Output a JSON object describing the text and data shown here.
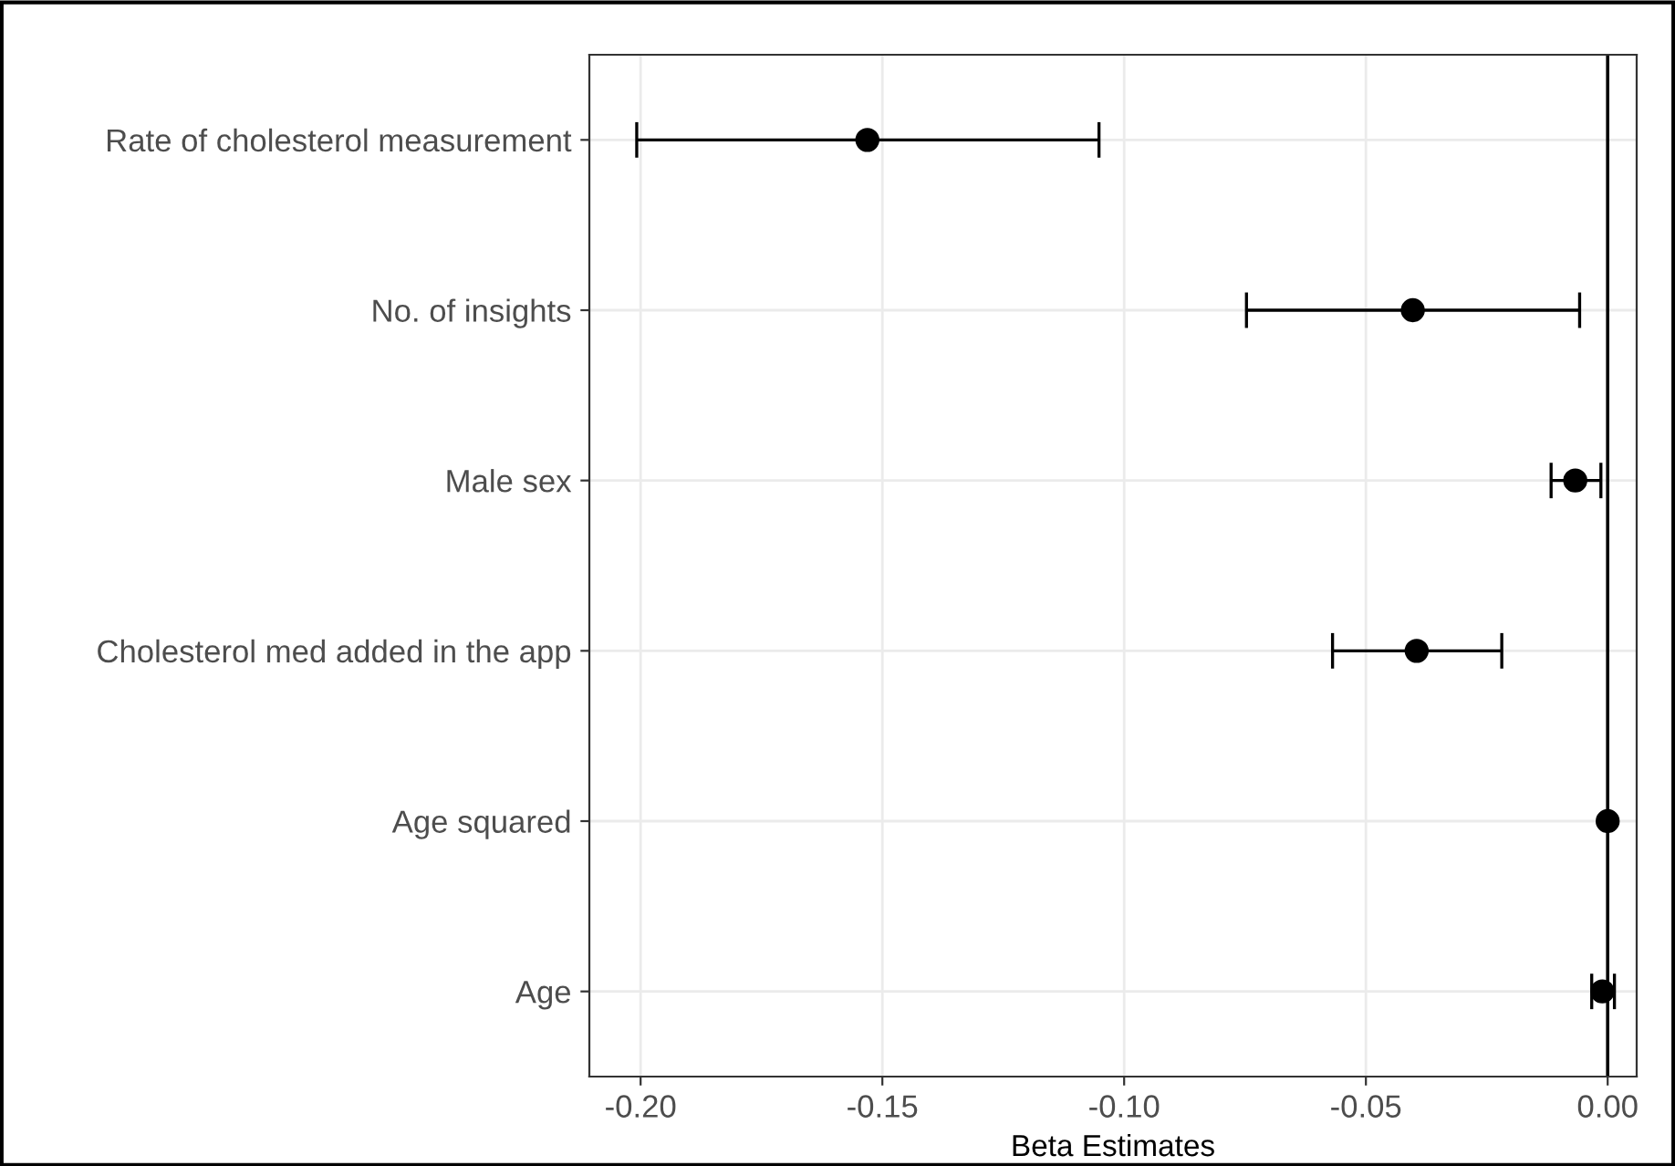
{
  "chart_data": {
    "type": "scatter",
    "orientation": "horizontal",
    "xlabel": "Beta Estimates",
    "categories": [
      "Rate of cholesterol measurement",
      "No. of insights",
      "Male sex",
      "Cholesterol med added in the app",
      "Age squared",
      "Age"
    ],
    "values": [
      -0.1531,
      -0.0403,
      -0.0067,
      -0.0395,
      0.0,
      -0.0011
    ],
    "errors": [
      [
        -0.2008,
        -0.1052
      ],
      [
        -0.0747,
        -0.0058
      ],
      [
        -0.0117,
        -0.0014
      ],
      [
        -0.0569,
        -0.0219
      ],
      null,
      [
        -0.0033,
        0.0014
      ]
    ],
    "color": "#000000",
    "marker": "circle",
    "xlim": [
      -0.2106,
      0.006
    ],
    "xticks": [
      {
        "value": -0.2,
        "label": "-0.20"
      },
      {
        "value": -0.15,
        "label": "-0.15"
      },
      {
        "value": -0.1,
        "label": "-0.10"
      },
      {
        "value": -0.05,
        "label": "-0.05"
      },
      {
        "value": 0,
        "label": "0.00"
      }
    ],
    "ref_lines": [
      {
        "axis": "x",
        "value": 0,
        "color": "#000000"
      }
    ],
    "grid": true
  }
}
